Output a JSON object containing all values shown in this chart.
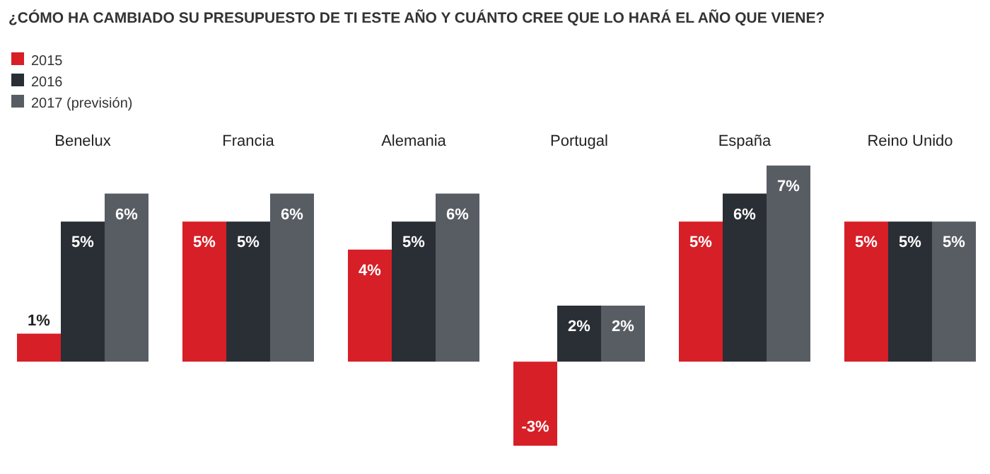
{
  "chart_data": {
    "type": "bar",
    "title": "¿CÓMO HA CAMBIADO SU PRESUPUESTO DE TI ESTE AÑO Y CUÁNTO CREE QUE LO HARÁ EL AÑO QUE VIENE?",
    "categories": [
      "Benelux",
      "Francia",
      "Alemania",
      "Portugal",
      "España",
      "Reino Unido"
    ],
    "series": [
      {
        "name": "2015",
        "color": "#d71f27",
        "values": [
          1,
          5,
          4,
          -3,
          5,
          5
        ],
        "value_labels": [
          "1%",
          "5%",
          "4%",
          "-3%",
          "5%",
          "5%"
        ]
      },
      {
        "name": "2016",
        "color": "#2a2e35",
        "values": [
          5,
          5,
          5,
          2,
          6,
          5
        ],
        "value_labels": [
          "5%",
          "5%",
          "5%",
          "2%",
          "6%",
          "5%"
        ]
      },
      {
        "name": "2017 (previsión)",
        "color": "#585d64",
        "values": [
          6,
          6,
          6,
          2,
          7,
          5
        ],
        "value_labels": [
          "6%",
          "6%",
          "6%",
          "2%",
          "7%",
          "5%"
        ]
      }
    ],
    "legend": "top left"
  }
}
